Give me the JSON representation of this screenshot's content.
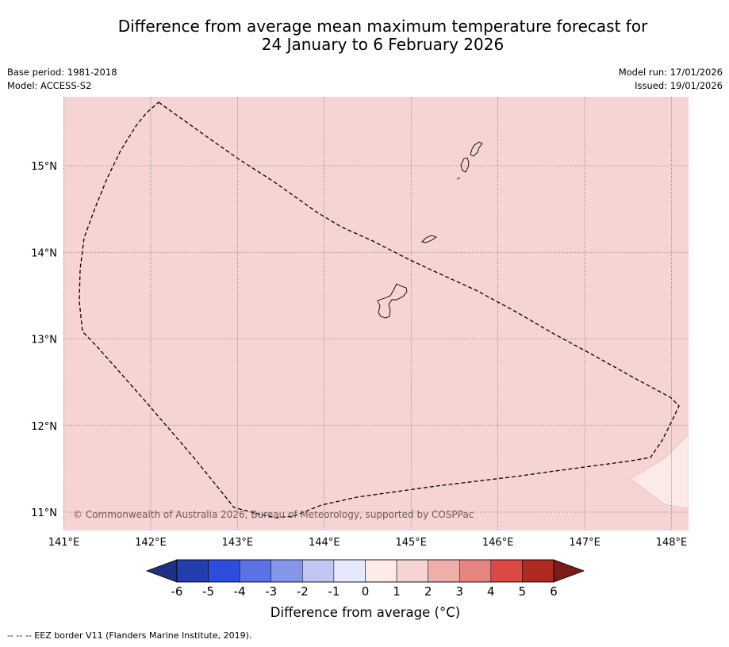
{
  "title": {
    "line1": "Difference from average mean maximum temperature forecast for",
    "line2": "24 January to 6 February 2026"
  },
  "meta": {
    "base_period": "Base period: 1981-2018",
    "model": "Model: ACCESS-S2",
    "model_run": "Model run: 17/01/2026",
    "issued": "Issued: 19/01/2026"
  },
  "map": {
    "background_color": "#f5d4d3",
    "lon_ticks": [
      "141°E",
      "142°E",
      "143°E",
      "144°E",
      "145°E",
      "146°E",
      "147°E",
      "148°E"
    ],
    "lon_values": [
      141,
      142,
      143,
      144,
      145,
      146,
      147,
      148
    ],
    "lat_ticks": [
      "15°N",
      "14°N",
      "13°N",
      "12°N",
      "11°N"
    ],
    "lat_values": [
      15,
      14,
      13,
      12,
      11
    ],
    "copyright": "© Commonwealth of Australia 2026, Bureau of Meteorology, supported by COSPPac"
  },
  "colorbar": {
    "title": "Difference from average (°C)",
    "labels": [
      "-6",
      "-5",
      "-4",
      "-3",
      "-2",
      "-1",
      "0",
      "1",
      "2",
      "3",
      "4",
      "5",
      "6"
    ],
    "colors": [
      "#243eb0",
      "#2e4ddc",
      "#5a72e3",
      "#8596ea",
      "#c0c7f3",
      "#e6e9fb",
      "#fbeae7",
      "#f5d4d3",
      "#eeaeaa",
      "#e88581",
      "#dc4843",
      "#ae2a23"
    ],
    "under_color": "#1f2f85",
    "over_color": "#7b1b1b"
  },
  "footnote": "--  --  -- EEZ border V11 (Flanders Marine Institute, 2019)."
}
